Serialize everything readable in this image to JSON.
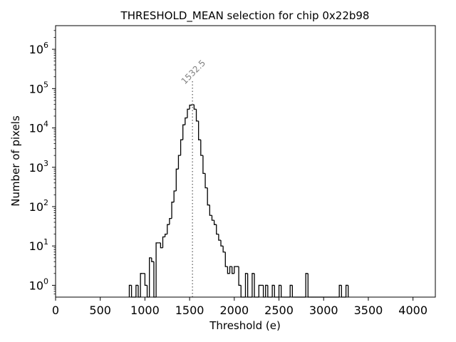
{
  "chart_data": {
    "type": "histogram",
    "title": "THRESHOLD_MEAN selection for chip 0x22b98",
    "xlabel": "Threshold (e)",
    "ylabel": "Number of pixels",
    "xlim": [
      0,
      4250
    ],
    "ylim_log10": [
      -0.3,
      6.6
    ],
    "yscale": "log",
    "bin_width": 25,
    "x_ticks": [
      0,
      500,
      1000,
      1500,
      2000,
      2500,
      3000,
      3500,
      4000
    ],
    "x_tick_labels": [
      "0",
      "500",
      "1000",
      "1500",
      "2000",
      "2500",
      "3000",
      "3500",
      "4000"
    ],
    "y_ticks_exp": [
      0,
      1,
      2,
      3,
      4,
      5,
      6
    ],
    "y_tick_base": "10",
    "y_tick_exponents": [
      "0",
      "1",
      "2",
      "3",
      "4",
      "5",
      "6"
    ],
    "vline": {
      "x": 1532.5,
      "label": "1532.5",
      "style": "dotted",
      "color": "#808080"
    },
    "line_color": "#000000",
    "bins": [
      {
        "x": 825,
        "v": 1
      },
      {
        "x": 850,
        "v": 0
      },
      {
        "x": 875,
        "v": 0
      },
      {
        "x": 900,
        "v": 1
      },
      {
        "x": 925,
        "v": 0
      },
      {
        "x": 950,
        "v": 2
      },
      {
        "x": 975,
        "v": 2
      },
      {
        "x": 1000,
        "v": 1
      },
      {
        "x": 1025,
        "v": 0
      },
      {
        "x": 1050,
        "v": 5
      },
      {
        "x": 1075,
        "v": 4
      },
      {
        "x": 1100,
        "v": 0
      },
      {
        "x": 1125,
        "v": 12
      },
      {
        "x": 1150,
        "v": 12
      },
      {
        "x": 1175,
        "v": 9
      },
      {
        "x": 1200,
        "v": 17
      },
      {
        "x": 1225,
        "v": 20
      },
      {
        "x": 1250,
        "v": 35
      },
      {
        "x": 1275,
        "v": 50
      },
      {
        "x": 1300,
        "v": 130
      },
      {
        "x": 1325,
        "v": 250
      },
      {
        "x": 1350,
        "v": 900
      },
      {
        "x": 1375,
        "v": 2000
      },
      {
        "x": 1400,
        "v": 5000
      },
      {
        "x": 1425,
        "v": 12000
      },
      {
        "x": 1450,
        "v": 18000
      },
      {
        "x": 1475,
        "v": 30000
      },
      {
        "x": 1500,
        "v": 38000
      },
      {
        "x": 1525,
        "v": 39000
      },
      {
        "x": 1550,
        "v": 30000
      },
      {
        "x": 1575,
        "v": 15000
      },
      {
        "x": 1600,
        "v": 5000
      },
      {
        "x": 1625,
        "v": 2000
      },
      {
        "x": 1650,
        "v": 700
      },
      {
        "x": 1675,
        "v": 300
      },
      {
        "x": 1700,
        "v": 110
      },
      {
        "x": 1725,
        "v": 60
      },
      {
        "x": 1750,
        "v": 45
      },
      {
        "x": 1775,
        "v": 35
      },
      {
        "x": 1800,
        "v": 20
      },
      {
        "x": 1825,
        "v": 14
      },
      {
        "x": 1850,
        "v": 10
      },
      {
        "x": 1875,
        "v": 7
      },
      {
        "x": 1900,
        "v": 3
      },
      {
        "x": 1925,
        "v": 2
      },
      {
        "x": 1950,
        "v": 3
      },
      {
        "x": 1975,
        "v": 2
      },
      {
        "x": 2000,
        "v": 3
      },
      {
        "x": 2025,
        "v": 3
      },
      {
        "x": 2050,
        "v": 1
      },
      {
        "x": 2075,
        "v": 0
      },
      {
        "x": 2100,
        "v": 0
      },
      {
        "x": 2125,
        "v": 2
      },
      {
        "x": 2150,
        "v": 0
      },
      {
        "x": 2175,
        "v": 0
      },
      {
        "x": 2200,
        "v": 2
      },
      {
        "x": 2225,
        "v": 0
      },
      {
        "x": 2250,
        "v": 0
      },
      {
        "x": 2275,
        "v": 1
      },
      {
        "x": 2300,
        "v": 1
      },
      {
        "x": 2325,
        "v": 0
      },
      {
        "x": 2350,
        "v": 1
      },
      {
        "x": 2375,
        "v": 0
      },
      {
        "x": 2400,
        "v": 0
      },
      {
        "x": 2425,
        "v": 1
      },
      {
        "x": 2450,
        "v": 0
      },
      {
        "x": 2475,
        "v": 0
      },
      {
        "x": 2500,
        "v": 1
      },
      {
        "x": 2525,
        "v": 0
      },
      {
        "x": 2550,
        "v": 0
      },
      {
        "x": 2575,
        "v": 0
      },
      {
        "x": 2600,
        "v": 0
      },
      {
        "x": 2625,
        "v": 1
      },
      {
        "x": 2650,
        "v": 0
      },
      {
        "x": 2675,
        "v": 0
      },
      {
        "x": 2700,
        "v": 0
      },
      {
        "x": 2725,
        "v": 0
      },
      {
        "x": 2750,
        "v": 0
      },
      {
        "x": 2775,
        "v": 0
      },
      {
        "x": 2800,
        "v": 2
      },
      {
        "x": 2825,
        "v": 0
      },
      {
        "x": 2850,
        "v": 0
      },
      {
        "x": 2875,
        "v": 0
      },
      {
        "x": 2900,
        "v": 0
      },
      {
        "x": 2925,
        "v": 0
      },
      {
        "x": 2950,
        "v": 0
      },
      {
        "x": 2975,
        "v": 0
      },
      {
        "x": 3000,
        "v": 0
      },
      {
        "x": 3025,
        "v": 0
      },
      {
        "x": 3050,
        "v": 0
      },
      {
        "x": 3075,
        "v": 0
      },
      {
        "x": 3100,
        "v": 0
      },
      {
        "x": 3125,
        "v": 0
      },
      {
        "x": 3150,
        "v": 0
      },
      {
        "x": 3175,
        "v": 1
      },
      {
        "x": 3200,
        "v": 0
      },
      {
        "x": 3225,
        "v": 0
      },
      {
        "x": 3250,
        "v": 1
      }
    ]
  }
}
